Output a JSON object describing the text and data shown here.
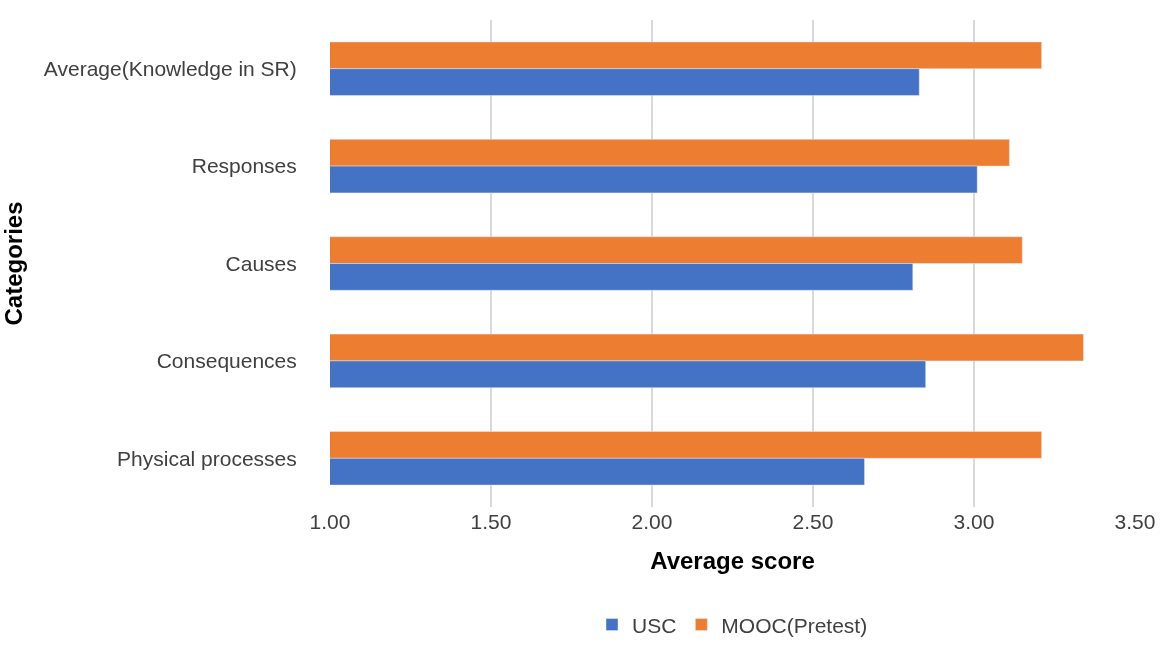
{
  "chart_data": {
    "type": "bar",
    "orientation": "horizontal",
    "xlabel": "Average score",
    "ylabel": "Categories",
    "categories": [
      "Average(Knowledge in SR)",
      "Responses",
      "Causes",
      "Consequences",
      "Physical processes"
    ],
    "series": [
      {
        "name": "USC",
        "color": "#4472c4",
        "values": [
          2.83,
          3.01,
          2.81,
          2.85,
          2.66
        ]
      },
      {
        "name": "MOOC(Pretest)",
        "color": "#ed7d31",
        "values": [
          3.21,
          3.11,
          3.15,
          3.34,
          3.21
        ]
      }
    ],
    "xlim": [
      1.0,
      3.5
    ],
    "xticks": [
      {
        "value": 1.0,
        "label": "1.00"
      },
      {
        "value": 1.5,
        "label": "1.50"
      },
      {
        "value": 2.0,
        "label": "2.00"
      },
      {
        "value": 2.5,
        "label": "2.50"
      },
      {
        "value": 3.0,
        "label": "3.00"
      },
      {
        "value": 3.5,
        "label": "3.50"
      }
    ],
    "grid": "x",
    "legend": "bottom"
  }
}
